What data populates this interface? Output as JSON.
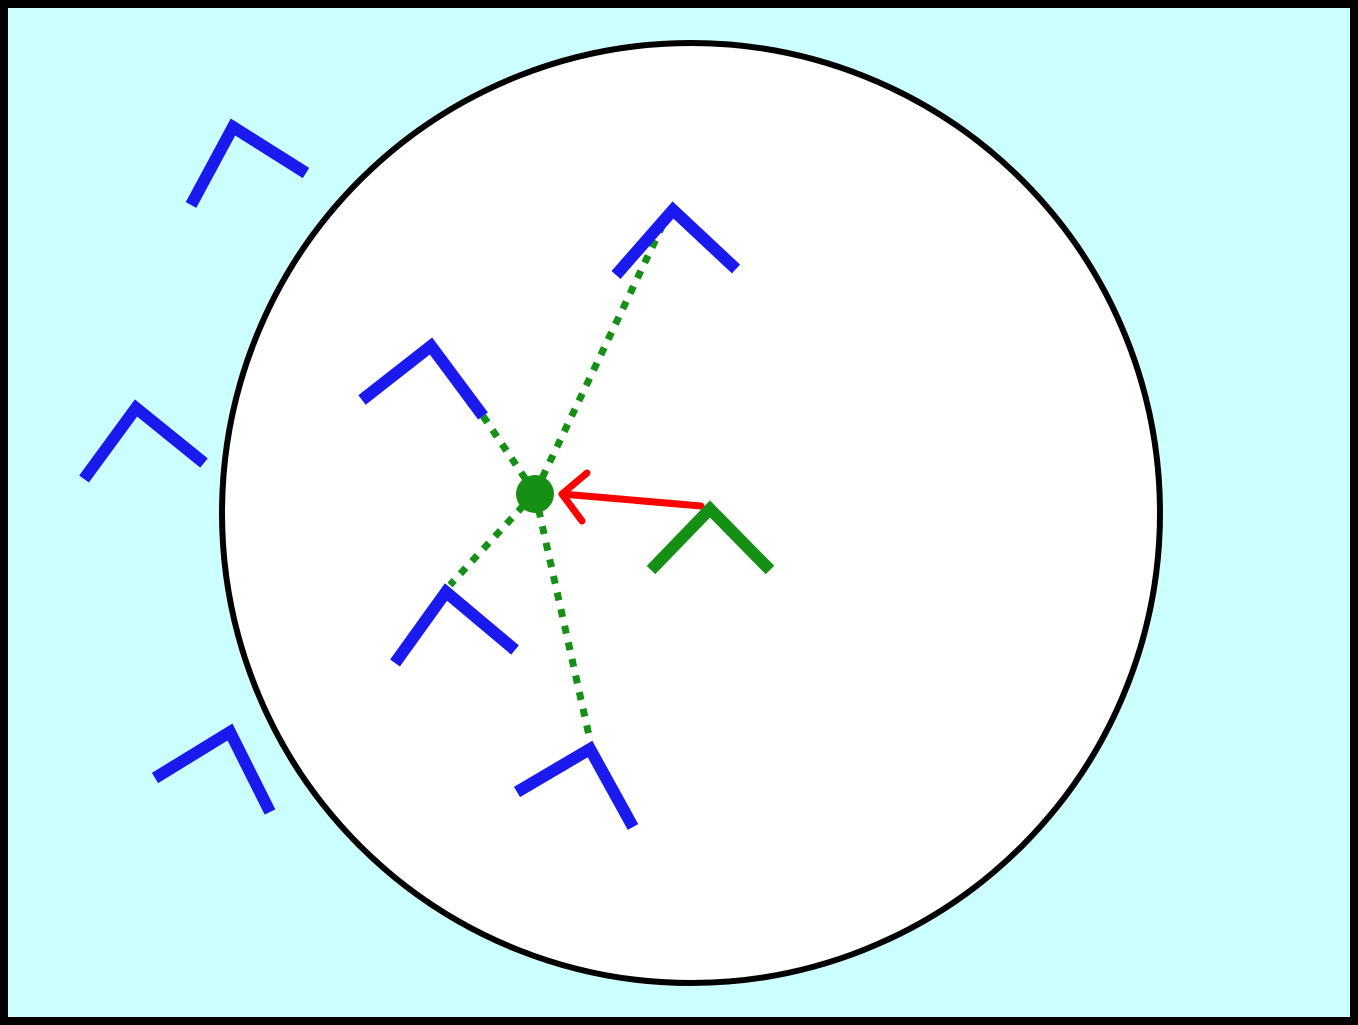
{
  "diagram": {
    "kind": "boids-cohesion",
    "colors": {
      "background": "#ccffff",
      "frame": "#000000",
      "perception_area": "#ffffff",
      "perception_outline": "#000000",
      "other_boid": "#1a1aee",
      "focal_boid": "#159015",
      "center_of_mass": "#159015",
      "neighbor_link": "#159015",
      "steering_vector": "#ff0000"
    },
    "elements": {
      "perception_radius": "perception-circle",
      "focal_boid": "green-chevron",
      "center_of_mass": "green-dot",
      "steering_vector": "red-arrow",
      "neighbor_links": "dotted-green-lines"
    },
    "counts": {
      "neighbors_inside_radius": 4,
      "boids_outside_radius": 3
    }
  }
}
